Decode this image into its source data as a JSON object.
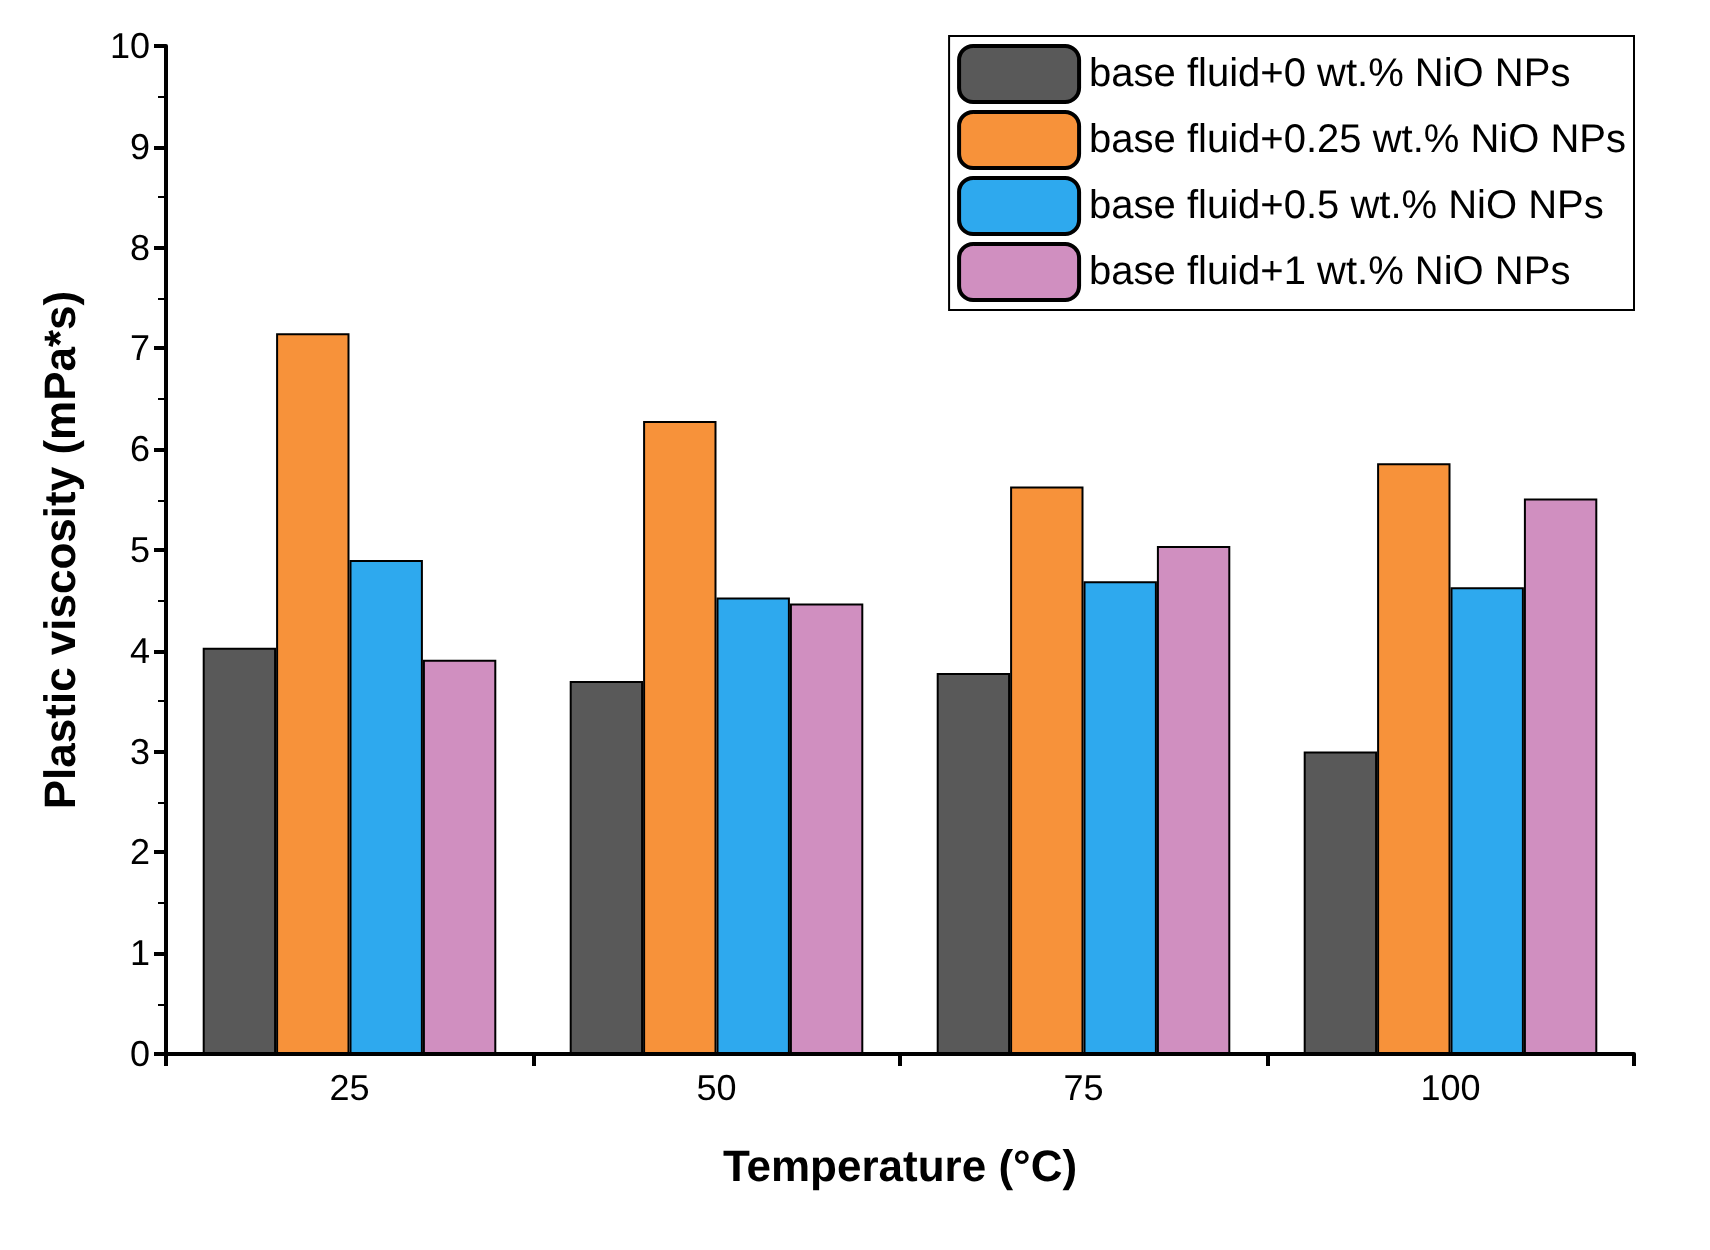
{
  "chart_data": {
    "type": "bar",
    "xlabel": "Temperature (°C)",
    "ylabel": "Plastic viscosity (mPa*s)",
    "categories": [
      "25",
      "50",
      "75",
      "100"
    ],
    "series": [
      {
        "name": "base fluid+0 wt.% NiO NPs",
        "color": "#595959",
        "values": [
          4.03,
          3.7,
          3.78,
          3.0
        ]
      },
      {
        "name": "base fluid+0.25 wt.% NiO NPs",
        "color": "#f7923a",
        "values": [
          7.15,
          6.28,
          5.63,
          5.86
        ]
      },
      {
        "name": "base fluid+0.5 wt.% NiO NPs",
        "color": "#2ea9ee",
        "values": [
          4.9,
          4.53,
          4.69,
          4.63
        ]
      },
      {
        "name": "base fluid+1 wt.% NiO NPs",
        "color": "#d08fc0",
        "values": [
          3.91,
          4.47,
          5.04,
          5.51
        ]
      }
    ],
    "ylim": [
      0,
      10
    ],
    "yticks": [
      0,
      1,
      2,
      3,
      4,
      5,
      6,
      7,
      8,
      9,
      10
    ],
    "grid": false,
    "legend": "top right"
  }
}
